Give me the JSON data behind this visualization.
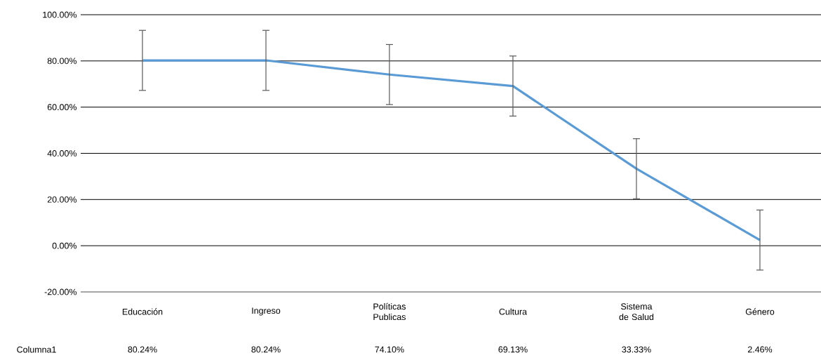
{
  "chart_data": {
    "type": "line",
    "categories": [
      "Educación",
      "Ingreso",
      "Políticas Publicas",
      "Cultura",
      "Sistema de Salud",
      "Género"
    ],
    "series": [
      {
        "name": "Columna1",
        "color": "#5b9bd5",
        "values": [
          80.24,
          80.24,
          74.1,
          69.13,
          33.33,
          2.46
        ],
        "errors": [
          13,
          13,
          13,
          13,
          13,
          13
        ],
        "value_labels": [
          "80.24%",
          "80.24%",
          "74.10%",
          "69.13%",
          "33.33%",
          "2.46%"
        ]
      }
    ],
    "ylim": [
      -20,
      100
    ],
    "yticks": [
      {
        "value": -20,
        "label": "-20.00%"
      },
      {
        "value": 0,
        "label": "0.00%"
      },
      {
        "value": 20,
        "label": "20.00%"
      },
      {
        "value": 40,
        "label": "40.00%"
      },
      {
        "value": 60,
        "label": "60.00%"
      },
      {
        "value": 80,
        "label": "80.00%"
      },
      {
        "value": 100,
        "label": "100.00%"
      }
    ],
    "grid": "y"
  }
}
